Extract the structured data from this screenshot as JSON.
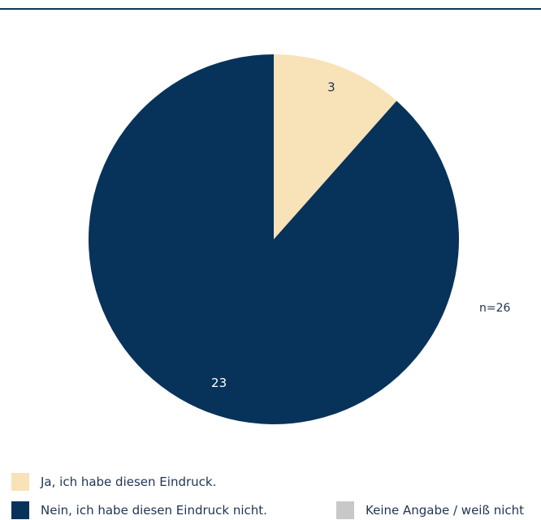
{
  "chart_data": {
    "type": "pie",
    "slices": [
      {
        "label": "Ja, ich habe diesen Eindruck.",
        "value": 3,
        "color": "#f8e2b8",
        "label_color": "#1f3550"
      },
      {
        "label": "Nein, ich habe diesen Eindruck nicht.",
        "value": 23,
        "color": "#07335a",
        "label_color": "#ffffff"
      },
      {
        "label": "Keine Angabe / weiß nicht",
        "value": 0,
        "color": "#c8c8c8",
        "label_color": "#1f3550"
      }
    ],
    "annotation": "n=26",
    "start_angle": "12 o'clock",
    "direction": "clockwise",
    "legend_position": "bottom"
  }
}
